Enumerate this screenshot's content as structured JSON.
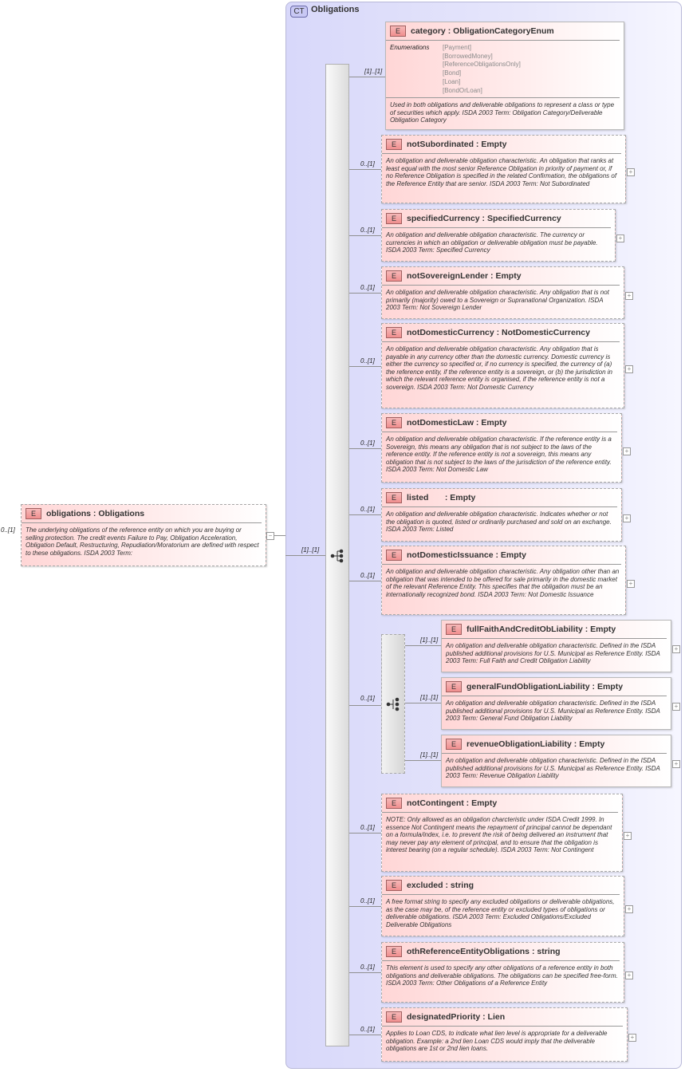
{
  "root": {
    "cardinality": "0..[1]",
    "name": "obligations",
    "type": "Obligations",
    "description": "The underlying obligations of the reference entity on which you are buying or selling protection. The credit events Failure to Pay, Obligation Acceleration, Obligation Default, Restructuring, Repudiation/Moratorium are defined with respect to these obligations. ISDA 2003 Term:",
    "collapse_symbol": "−"
  },
  "complex_type": {
    "badge": "CT",
    "title": "Obligations",
    "sequence_cardinality": "[1]..[1]"
  },
  "element_badge": "E",
  "expand_symbol": "+",
  "colors": {
    "element_fill": "#ffd6d6",
    "container_fill": "#d8d8fa",
    "badge_fill": "#f08e8e"
  },
  "elements": [
    {
      "cardinality": "[1]..[1]",
      "name": "category",
      "type": "ObligationCategoryEnum",
      "optional": false,
      "enumerations_label": "Enumerations",
      "enumerations": [
        "[Payment]",
        "[BorrowedMoney]",
        "[ReferenceObligationsOnly]",
        "[Bond]",
        "[Loan]",
        "[BondOrLoan]"
      ],
      "description": "Used in both obligations and deliverable obligations to represent a class or type of securities which apply. ISDA 2003 Term: Obligation Category/Deliverable Obligation Category"
    },
    {
      "cardinality": "0..[1]",
      "name": "notSubordinated",
      "type": "Empty",
      "optional": true,
      "description": "An obligation and deliverable obligation characteristic. An obligation that ranks at least equal with the most senior Reference Obligation in priority of payment or, if no Reference Obligation is specified in the related Confirmation, the obligations of the Reference Entity that are senior. ISDA 2003 Term: Not Subordinated"
    },
    {
      "cardinality": "0..[1]",
      "name": "specifiedCurrency",
      "type": "SpecifiedCurrency",
      "optional": true,
      "description": "An obligation and deliverable obligation characteristic. The currency or currencies in which an obligation or deliverable obligation must be payable. ISDA 2003 Term: Specified Currency"
    },
    {
      "cardinality": "0..[1]",
      "name": "notSovereignLender",
      "type": "Empty",
      "optional": true,
      "description": "An obligation and deliverable obligation characteristic. Any obligation that is not primarily (majority) owed to a Sovereign or Supranational Organization. ISDA 2003 Term: Not Sovereign Lender"
    },
    {
      "cardinality": "0..[1]",
      "name": "notDomesticCurrency",
      "type": "NotDomesticCurrency",
      "optional": true,
      "description": "An obligation and deliverable obligation characteristic. Any obligation that is payable in any currency other than the domestic currency. Domestic currency is either the currency so specified or, if no currency is specified, the currency of (a) the reference entity, if the reference entity is a sovereign, or (b) the jurisdiction in which the relevant reference entity is organised, if the reference entity is not a sovereign. ISDA 2003 Term: Not Domestic Currency"
    },
    {
      "cardinality": "0..[1]",
      "name": "notDomesticLaw",
      "type": "Empty",
      "optional": true,
      "description": "An obligation and deliverable obligation characteristic. If the reference entity is a Sovereign, this means any obligation that is not subject to the laws of the reference entity. If the reference entity is not a sovereign, this means any obligation that is not subject to the laws of the jurisdiction of the reference entity. ISDA 2003 Term: Not Domestic Law"
    },
    {
      "cardinality": "0..[1]",
      "name": "listed      ",
      "type": "Empty",
      "optional": true,
      "description": "An obligation and deliverable obligation characteristic. Indicates whether or not the obligation is quoted, listed or ordinarily purchased and sold on an exchange. ISDA 2003 Term: Listed"
    },
    {
      "cardinality": "0..[1]",
      "name": "notDomesticIssuance",
      "type": "Empty",
      "optional": true,
      "description": "An obligation and deliverable obligation characteristic. Any obligation other than an obligation that was intended to be offered for sale primarily in the domestic market of the relevant Reference Entity. This specifies that the obligation must be an internationally recognized bond. ISDA 2003 Term: Not Domestic Issuance"
    },
    {
      "cardinality": "0..[1]",
      "name": "notContingent",
      "type": "Empty",
      "optional": true,
      "description": "NOTE: Only allowed as an obligation charcteristic under ISDA Credit 1999. In essence Not Contingent means the repayment of principal cannot be dependant on a formula/index, i.e. to prevent the risk of being delivered an instrument that may never pay any element of principal, and to ensure that the obligation is interest bearing (on a regular schedule). ISDA 2003 Term: Not Contingent"
    },
    {
      "cardinality": "0..[1]",
      "name": "excluded",
      "type": "string",
      "optional": true,
      "description": "A free format string to specify any excluded obligations or deliverable obligations, as the case may be, of the reference entity or excluded types of obligations or deliverable obligations. ISDA 2003 Term: Excluded Obligations/Excluded Deliverable Obligations"
    },
    {
      "cardinality": "0..[1]",
      "name": "othReferenceEntityObligations",
      "type": "string",
      "optional": true,
      "description": "This element is used to specify any other obligations of a reference entity in both obligations and deliverable obligations. The obligations can be specified free-form. ISDA 2003 Term: Other Obligations of a Reference Entity"
    },
    {
      "cardinality": "0..[1]",
      "name": "designatedPriority",
      "type": "Lien",
      "optional": true,
      "description": "Applies to Loan CDS, to indicate what lien level is appropriate for a deliverable obligation. Example: a 2nd lien Loan CDS would imply that the deliverable obligations are 1st or 2nd lien loans."
    }
  ],
  "choice": {
    "cardinality": "0..[1]",
    "elements": [
      {
        "cardinality": "[1]..[1]",
        "name": "fullFaithAndCreditObLiability",
        "type": "Empty",
        "optional": false,
        "description": "An obligation and deliverable obligation characteristic. Defined in the ISDA published additional provisions for U.S. Municipal as Reference Entity. ISDA 2003 Term: Full Faith and Credit Obligation Liability"
      },
      {
        "cardinality": "[1]..[1]",
        "name": "generalFundObligationLiability",
        "type": "Empty",
        "optional": false,
        "description": "An obligation and deliverable obligation characteristic. Defined in the ISDA published additional provisions for U.S. Municipal as Reference Entity. ISDA 2003 Term: General Fund Obligation Liability"
      },
      {
        "cardinality": "[1]..[1]",
        "name": "revenueObligationLiability",
        "type": "Empty",
        "optional": false,
        "description": "An obligation and deliverable obligation characteristic. Defined in the ISDA published additional provisions for U.S. Municipal as Reference Entity. ISDA 2003 Term: Revenue Obligation Liability"
      }
    ]
  }
}
